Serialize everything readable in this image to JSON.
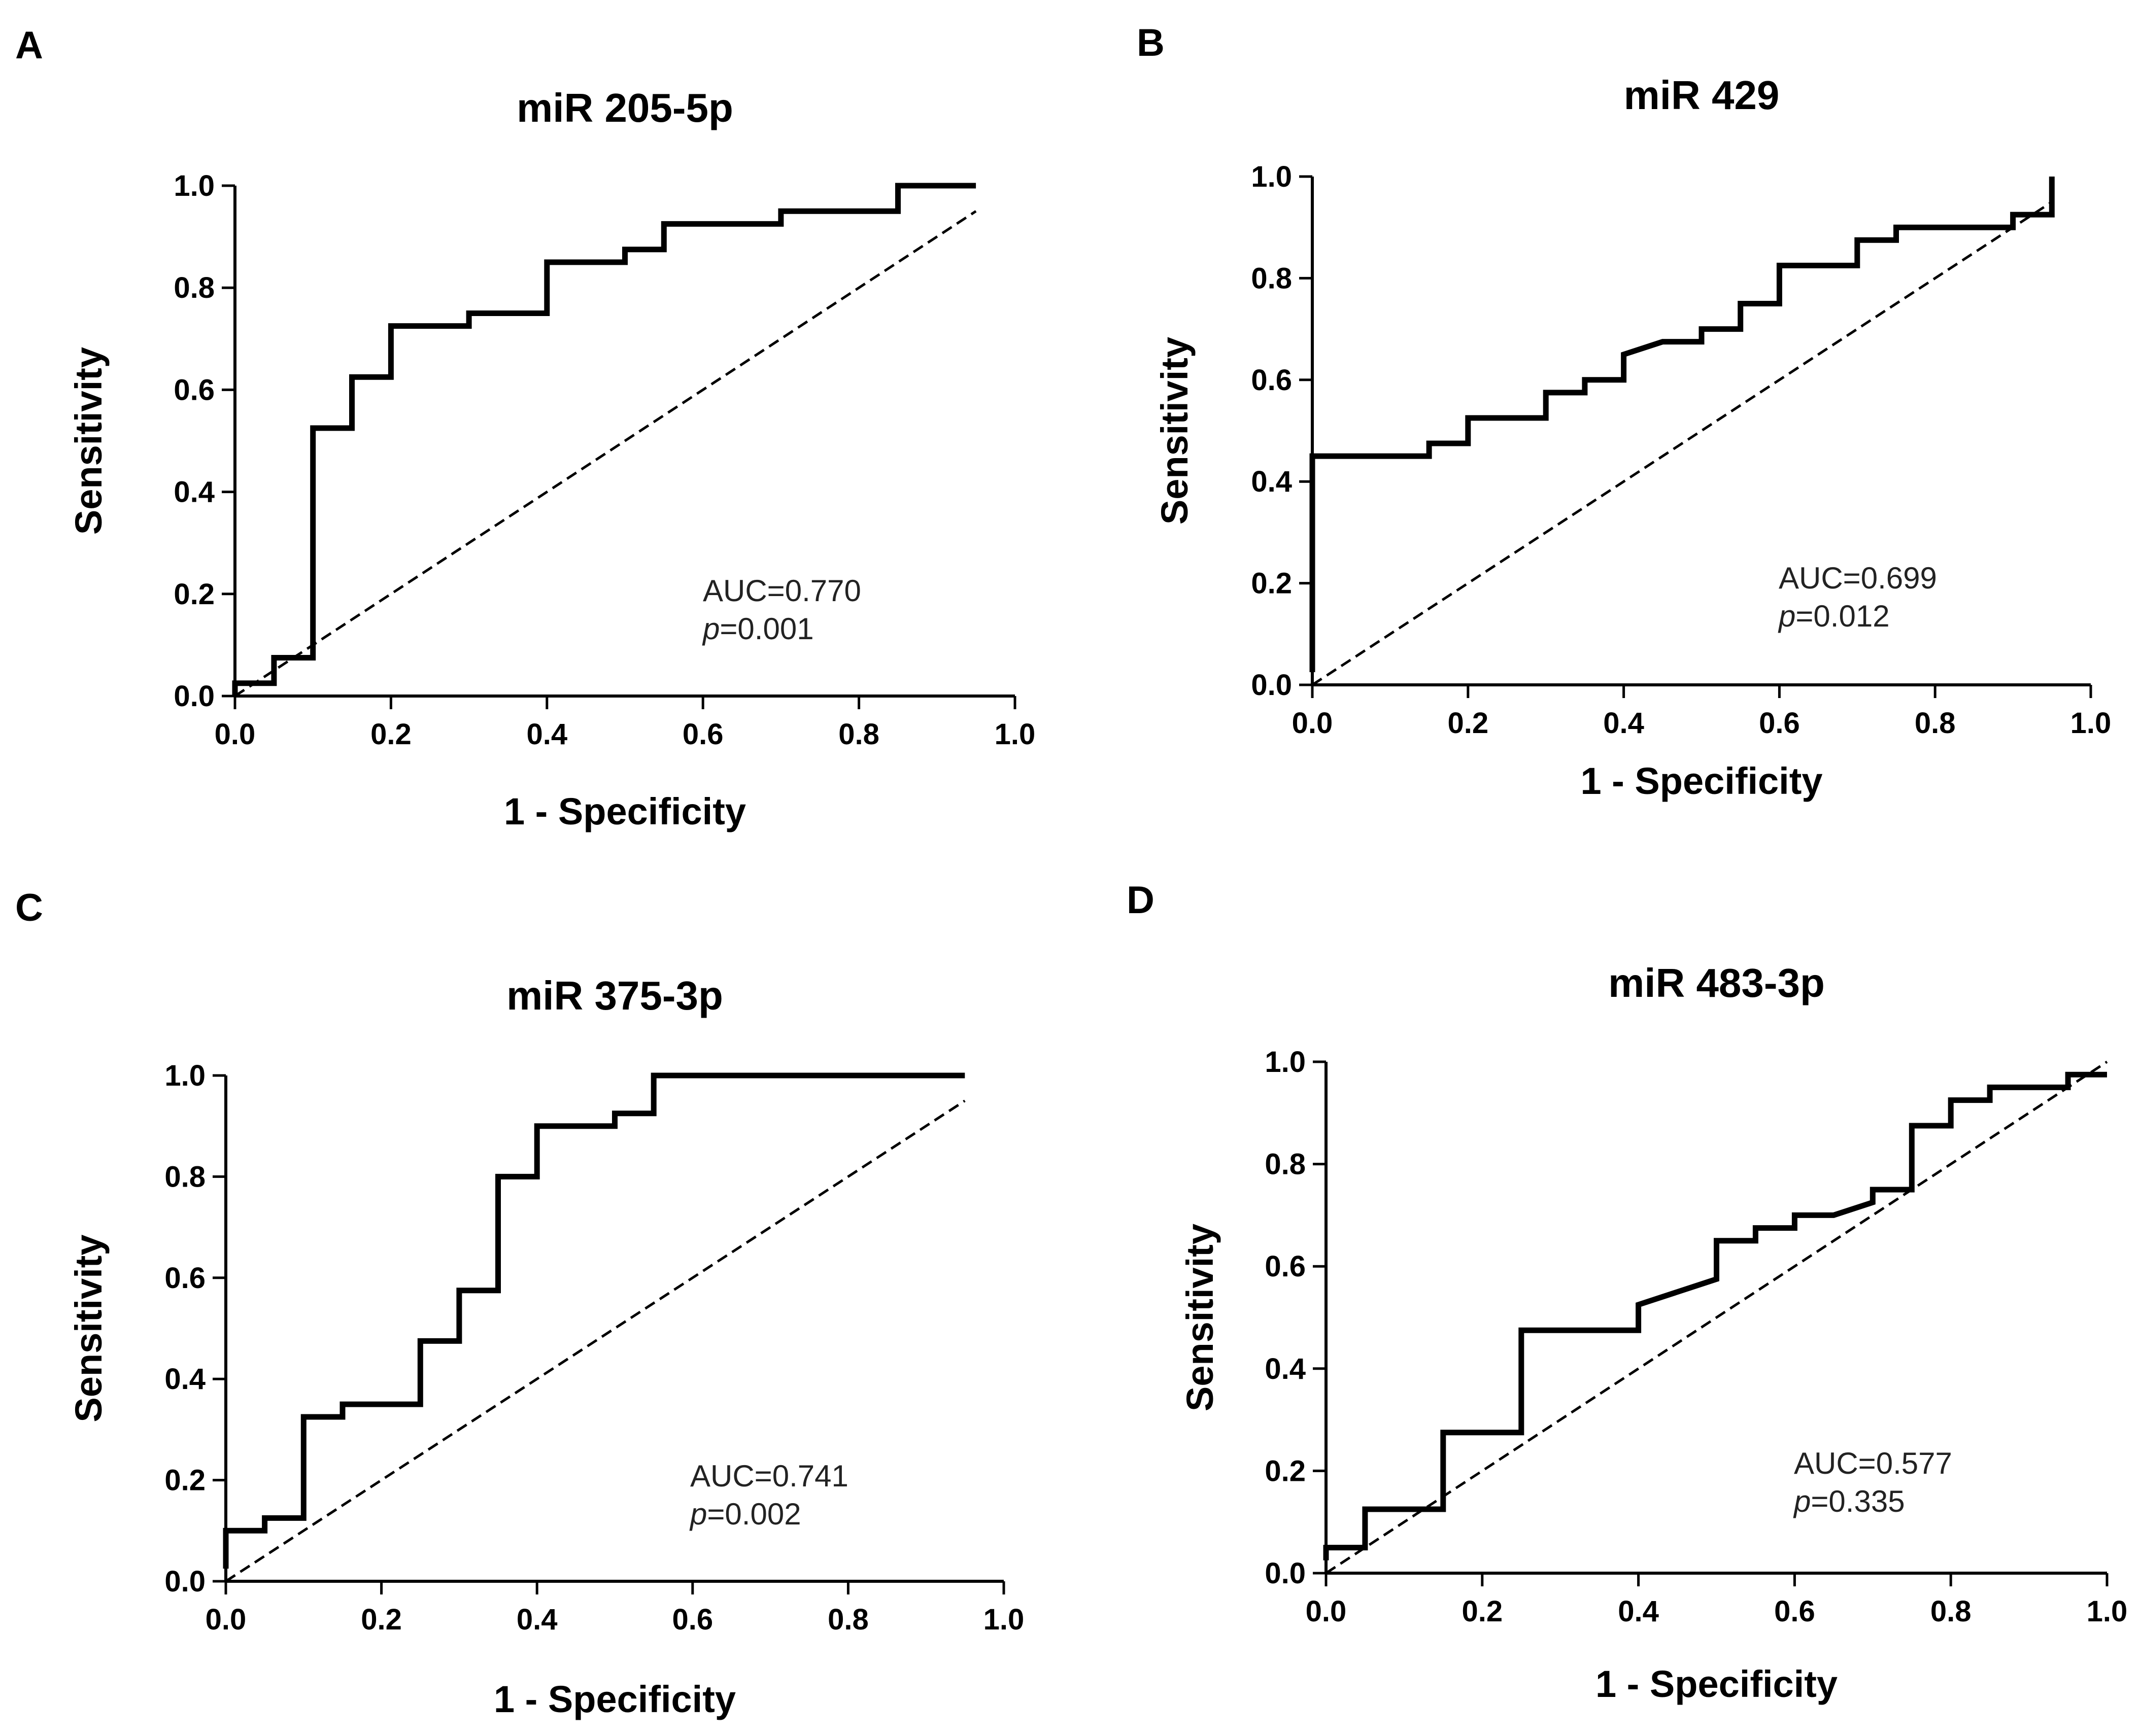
{
  "figure": {
    "panels": [
      "A",
      "B",
      "C",
      "D"
    ]
  },
  "chart_data": [
    {
      "type": "line",
      "panel": "A",
      "title": "miR 205-5p",
      "xlabel": "1 - Specificity",
      "ylabel": "Sensitivity",
      "xlim": [
        0.0,
        1.0
      ],
      "ylim": [
        0.0,
        1.0
      ],
      "x_ticks": [
        "0.0",
        "0.2",
        "0.4",
        "0.6",
        "0.8",
        "1.0"
      ],
      "y_ticks": [
        "0.0",
        "0.2",
        "0.4",
        "0.6",
        "0.8",
        "1.0"
      ],
      "annotation": {
        "auc": "AUC=0.770",
        "p_label": "p",
        "p_value": "=0.001"
      },
      "series": [
        {
          "name": "ROC",
          "style": "solid",
          "points": [
            [
              0.0,
              0.0
            ],
            [
              0.0,
              0.025
            ],
            [
              0.05,
              0.025
            ],
            [
              0.05,
              0.075
            ],
            [
              0.1,
              0.075
            ],
            [
              0.1,
              0.525
            ],
            [
              0.15,
              0.525
            ],
            [
              0.15,
              0.625
            ],
            [
              0.2,
              0.625
            ],
            [
              0.2,
              0.725
            ],
            [
              0.3,
              0.725
            ],
            [
              0.3,
              0.75
            ],
            [
              0.4,
              0.75
            ],
            [
              0.4,
              0.85
            ],
            [
              0.5,
              0.85
            ],
            [
              0.5,
              0.875
            ],
            [
              0.55,
              0.875
            ],
            [
              0.55,
              0.925
            ],
            [
              0.7,
              0.925
            ],
            [
              0.7,
              0.95
            ],
            [
              0.85,
              0.95
            ],
            [
              0.85,
              1.0
            ],
            [
              0.95,
              1.0
            ]
          ]
        },
        {
          "name": "Reference",
          "style": "dashed",
          "points": [
            [
              0.0,
              0.0
            ],
            [
              0.95,
              0.95
            ]
          ]
        }
      ]
    },
    {
      "type": "line",
      "panel": "B",
      "title": "miR 429",
      "xlabel": "1 - Specificity",
      "ylabel": "Sensitivity",
      "xlim": [
        0.0,
        1.0
      ],
      "ylim": [
        0.0,
        1.0
      ],
      "x_ticks": [
        "0.0",
        "0.2",
        "0.4",
        "0.6",
        "0.8",
        "1.0"
      ],
      "y_ticks": [
        "0.0",
        "0.2",
        "0.4",
        "0.6",
        "0.8",
        "1.0"
      ],
      "annotation": {
        "auc": "AUC=0.699",
        "p_label": "p",
        "p_value": "=0.012"
      },
      "series": [
        {
          "name": "ROC",
          "style": "solid",
          "points": [
            [
              0.0,
              0.025
            ],
            [
              0.0,
              0.45
            ],
            [
              0.15,
              0.45
            ],
            [
              0.15,
              0.475
            ],
            [
              0.2,
              0.475
            ],
            [
              0.2,
              0.525
            ],
            [
              0.3,
              0.525
            ],
            [
              0.3,
              0.575
            ],
            [
              0.35,
              0.575
            ],
            [
              0.35,
              0.6
            ],
            [
              0.4,
              0.6
            ],
            [
              0.4,
              0.65
            ],
            [
              0.45,
              0.675
            ],
            [
              0.5,
              0.675
            ],
            [
              0.5,
              0.7
            ],
            [
              0.55,
              0.7
            ],
            [
              0.55,
              0.75
            ],
            [
              0.6,
              0.75
            ],
            [
              0.6,
              0.825
            ],
            [
              0.7,
              0.825
            ],
            [
              0.7,
              0.875
            ],
            [
              0.75,
              0.875
            ],
            [
              0.75,
              0.9
            ],
            [
              0.9,
              0.9
            ],
            [
              0.9,
              0.925
            ],
            [
              0.95,
              0.925
            ],
            [
              0.95,
              1.0
            ]
          ]
        },
        {
          "name": "Reference",
          "style": "dashed",
          "points": [
            [
              0.0,
              0.0
            ],
            [
              0.95,
              0.95
            ]
          ]
        }
      ]
    },
    {
      "type": "line",
      "panel": "C",
      "title": "miR 375-3p",
      "xlabel": "1 - Specificity",
      "ylabel": "Sensitivity",
      "xlim": [
        0.0,
        1.0
      ],
      "ylim": [
        0.0,
        1.0
      ],
      "x_ticks": [
        "0.0",
        "0.2",
        "0.4",
        "0.6",
        "0.8",
        "1.0"
      ],
      "y_ticks": [
        "0.0",
        "0.2",
        "0.4",
        "0.6",
        "0.8",
        "1.0"
      ],
      "annotation": {
        "auc": "AUC=0.741",
        "p_label": "p",
        "p_value": "=0.002"
      },
      "series": [
        {
          "name": "ROC",
          "style": "solid",
          "points": [
            [
              0.0,
              0.025
            ],
            [
              0.0,
              0.1
            ],
            [
              0.05,
              0.1
            ],
            [
              0.05,
              0.125
            ],
            [
              0.1,
              0.125
            ],
            [
              0.1,
              0.325
            ],
            [
              0.15,
              0.325
            ],
            [
              0.15,
              0.35
            ],
            [
              0.25,
              0.35
            ],
            [
              0.25,
              0.475
            ],
            [
              0.3,
              0.475
            ],
            [
              0.3,
              0.575
            ],
            [
              0.35,
              0.575
            ],
            [
              0.35,
              0.8
            ],
            [
              0.4,
              0.8
            ],
            [
              0.4,
              0.9
            ],
            [
              0.5,
              0.9
            ],
            [
              0.5,
              0.925
            ],
            [
              0.55,
              0.925
            ],
            [
              0.55,
              1.0
            ],
            [
              0.95,
              1.0
            ]
          ]
        },
        {
          "name": "Reference",
          "style": "dashed",
          "points": [
            [
              0.0,
              0.0
            ],
            [
              0.95,
              0.95
            ]
          ]
        }
      ]
    },
    {
      "type": "line",
      "panel": "D",
      "title": "miR 483-3p",
      "xlabel": "1 - Specificity",
      "ylabel": "Sensitivity",
      "xlim": [
        0.0,
        1.0
      ],
      "ylim": [
        0.0,
        1.0
      ],
      "x_ticks": [
        "0.0",
        "0.2",
        "0.4",
        "0.6",
        "0.8",
        "1.0"
      ],
      "y_ticks": [
        "0.0",
        "0.2",
        "0.4",
        "0.6",
        "0.8",
        "1.0"
      ],
      "annotation": {
        "auc": "AUC=0.577",
        "p_label": "p",
        "p_value": "=0.335"
      },
      "series": [
        {
          "name": "ROC",
          "style": "solid",
          "points": [
            [
              0.0,
              0.025
            ],
            [
              0.0,
              0.05
            ],
            [
              0.05,
              0.05
            ],
            [
              0.05,
              0.125
            ],
            [
              0.15,
              0.125
            ],
            [
              0.15,
              0.275
            ],
            [
              0.25,
              0.275
            ],
            [
              0.25,
              0.475
            ],
            [
              0.4,
              0.475
            ],
            [
              0.4,
              0.525
            ],
            [
              0.5,
              0.575
            ],
            [
              0.5,
              0.65
            ],
            [
              0.55,
              0.65
            ],
            [
              0.55,
              0.675
            ],
            [
              0.6,
              0.675
            ],
            [
              0.6,
              0.7
            ],
            [
              0.65,
              0.7
            ],
            [
              0.7,
              0.725
            ],
            [
              0.7,
              0.75
            ],
            [
              0.75,
              0.75
            ],
            [
              0.75,
              0.875
            ],
            [
              0.8,
              0.875
            ],
            [
              0.8,
              0.925
            ],
            [
              0.85,
              0.925
            ],
            [
              0.85,
              0.95
            ],
            [
              0.95,
              0.95
            ],
            [
              0.95,
              0.975
            ],
            [
              1.0,
              0.975
            ]
          ]
        },
        {
          "name": "Reference",
          "style": "dashed",
          "points": [
            [
              0.0,
              0.0
            ],
            [
              1.0,
              1.0
            ]
          ]
        }
      ]
    }
  ]
}
